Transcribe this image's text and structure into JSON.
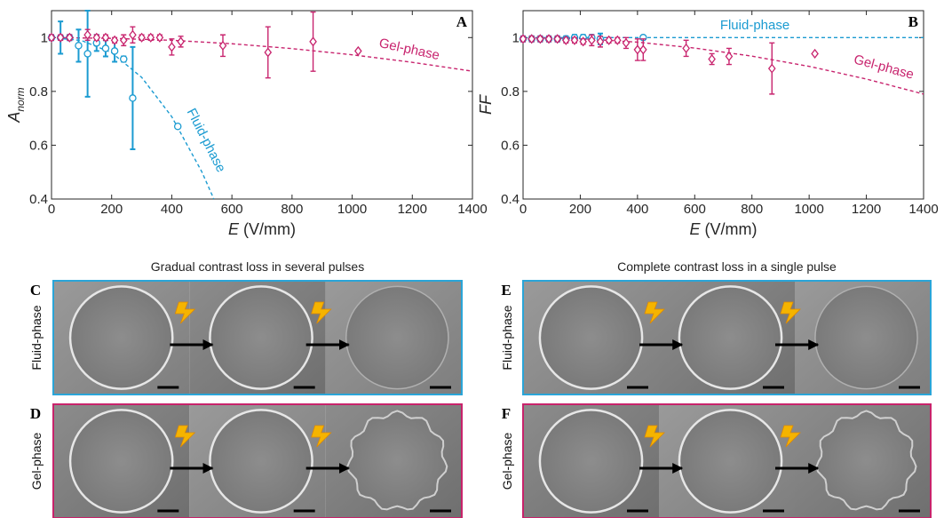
{
  "chart_data": [
    {
      "type": "scatter",
      "panel_label": "A",
      "ylabel": "A",
      "ylabel_subscript": "norm",
      "xlabel": "E",
      "xlabel_unit": "(V/mm)",
      "xlim": [
        0,
        1400
      ],
      "xticks": [
        0,
        200,
        400,
        600,
        800,
        1000,
        1200,
        1400
      ],
      "ylim": [
        0.4,
        1.1
      ],
      "yticks": [
        0.4,
        0.6,
        0.8,
        1
      ],
      "series": [
        {
          "name": "Fluid-phase",
          "color": "#1b9bd1",
          "marker": "circle",
          "x": [
            0,
            30,
            60,
            90,
            120,
            150,
            180,
            210,
            240,
            270,
            420
          ],
          "values": [
            1.0,
            1.0,
            1.0,
            0.97,
            0.94,
            0.98,
            0.96,
            0.95,
            0.92,
            0.775,
            0.67
          ],
          "errors": [
            0.01,
            0.06,
            0.01,
            0.06,
            0.16,
            0.03,
            0.03,
            0.04,
            0.01,
            0.19,
            0
          ]
        },
        {
          "name": "Gel-phase",
          "color": "#c8246e",
          "marker": "diamond",
          "x": [
            0,
            30,
            60,
            120,
            150,
            180,
            210,
            240,
            270,
            300,
            330,
            360,
            400,
            430,
            570,
            720,
            870,
            1020
          ],
          "values": [
            1.0,
            1.0,
            1.0,
            1.01,
            1.0,
            1.0,
            0.99,
            0.99,
            1.01,
            1.0,
            1.0,
            1.0,
            0.965,
            0.985,
            0.97,
            0.945,
            0.985,
            0.95
          ],
          "errors": [
            0.01,
            0.01,
            0.01,
            0.02,
            0.01,
            0.01,
            0.01,
            0.02,
            0.03,
            0.01,
            0.01,
            0.01,
            0.03,
            0.02,
            0.04,
            0.095,
            0.11,
            0
          ]
        }
      ],
      "fits": [
        {
          "color": "#1b9bd1",
          "x": [
            0,
            100,
            200,
            300,
            400,
            500,
            540
          ],
          "values": [
            1.0,
            0.989,
            0.944,
            0.852,
            0.706,
            0.501,
            0.4
          ]
        },
        {
          "color": "#c8246e",
          "x": [
            0,
            200,
            400,
            600,
            800,
            1000,
            1200,
            1400
          ],
          "values": [
            1.0,
            0.997,
            0.99,
            0.977,
            0.959,
            0.936,
            0.908,
            0.875
          ]
        }
      ],
      "annotations": [
        "Fluid-phase",
        "Gel-phase"
      ]
    },
    {
      "type": "scatter",
      "panel_label": "B",
      "ylabel": "FF",
      "xlabel": "E",
      "xlabel_unit": "(V/mm)",
      "xlim": [
        0,
        1400
      ],
      "xticks": [
        0,
        200,
        400,
        600,
        800,
        1000,
        1200,
        1400
      ],
      "ylim": [
        0.4,
        1.1
      ],
      "yticks": [
        0.4,
        0.6,
        0.8,
        1
      ],
      "series": [
        {
          "name": "Fluid-phase",
          "color": "#1b9bd1",
          "marker": "circle",
          "x": [
            0,
            30,
            60,
            90,
            120,
            150,
            180,
            210,
            240,
            270,
            420
          ],
          "values": [
            0.995,
            0.995,
            0.995,
            0.995,
            0.995,
            0.995,
            1.0,
            1.0,
            1.0,
            0.995,
            1.0
          ],
          "errors": [
            0.01,
            0.01,
            0.01,
            0.01,
            0.01,
            0.01,
            0.01,
            0.01,
            0.01,
            0.02,
            0
          ]
        },
        {
          "name": "Gel-phase",
          "color": "#c8246e",
          "marker": "diamond",
          "x": [
            0,
            30,
            60,
            90,
            120,
            150,
            180,
            210,
            240,
            270,
            300,
            330,
            360,
            400,
            420,
            570,
            660,
            720,
            870,
            1020
          ],
          "values": [
            0.995,
            0.995,
            0.995,
            0.995,
            0.995,
            0.99,
            0.99,
            0.985,
            0.99,
            0.985,
            0.99,
            0.99,
            0.98,
            0.955,
            0.955,
            0.96,
            0.92,
            0.93,
            0.885,
            0.94
          ],
          "errors": [
            0.01,
            0.01,
            0.01,
            0.01,
            0.01,
            0.01,
            0.01,
            0.01,
            0.02,
            0.02,
            0.01,
            0.01,
            0.02,
            0.04,
            0.04,
            0.03,
            0.02,
            0.03,
            0.095,
            0
          ]
        }
      ],
      "fits": [
        {
          "color": "#1b9bd1",
          "x": [
            0,
            1400
          ],
          "values": [
            1.0,
            1.0
          ]
        },
        {
          "color": "#c8246e",
          "x": [
            0,
            200,
            400,
            600,
            800,
            1000,
            1200,
            1400
          ],
          "values": [
            1.0,
            0.996,
            0.983,
            0.961,
            0.931,
            0.893,
            0.846,
            0.79
          ]
        }
      ],
      "annotations": [
        "Fluid-phase",
        "Gel-phase"
      ]
    }
  ],
  "image_panels": [
    {
      "title": "Gradual contrast loss in several pulses",
      "rows": [
        {
          "label": "C",
          "phase": "Fluid-phase"
        },
        {
          "label": "D",
          "phase": "Gel-phase"
        }
      ]
    },
    {
      "title": "Complete contrast loss in a single pulse",
      "rows": [
        {
          "label": "E",
          "phase": "Fluid-phase"
        },
        {
          "label": "F",
          "phase": "Gel-phase"
        }
      ]
    }
  ]
}
